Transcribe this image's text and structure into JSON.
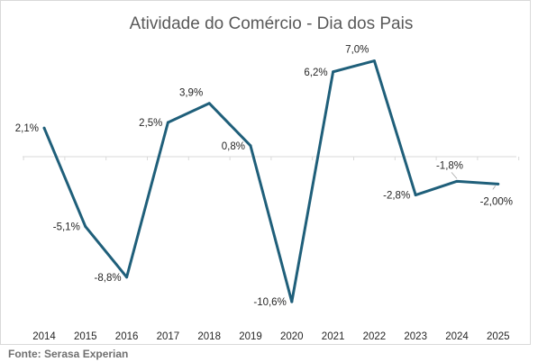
{
  "chart_data": {
    "type": "line",
    "title": "Atividade do Comércio - Dia dos Pais",
    "categories": [
      "2014",
      "2015",
      "2016",
      "2017",
      "2018",
      "2019",
      "2020",
      "2021",
      "2022",
      "2023",
      "2024",
      "2025"
    ],
    "values": [
      2.1,
      -5.1,
      -8.8,
      2.5,
      3.9,
      0.8,
      -10.6,
      6.2,
      7.0,
      -2.8,
      -1.8,
      -2.0
    ],
    "data_labels": [
      "2,1%",
      "-5,1%",
      "-8,8%",
      "2,5%",
      "3,9%",
      "0,8%",
      "-10,6%",
      "6,2%",
      "7,0%",
      "-2,8%",
      "-1,8%",
      "-2,00%"
    ],
    "ylim": [
      -12,
      8
    ],
    "grid": false,
    "legend": "none",
    "line_color": "#1f5f7a"
  },
  "source": "Fonte: Serasa Experian"
}
